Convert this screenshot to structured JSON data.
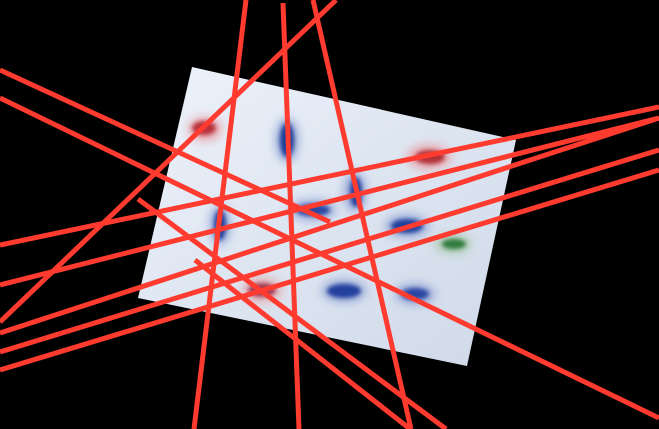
{
  "scene": {
    "background_color": "#000000",
    "card_color": "#dfe6f0",
    "laser_color": "#ff3b30",
    "laser_line_count": 13,
    "cluster_colors": {
      "red": "#b8323a",
      "blue": "#1f3c96",
      "green": "#2e7a3c"
    },
    "cluster_count": 11
  }
}
